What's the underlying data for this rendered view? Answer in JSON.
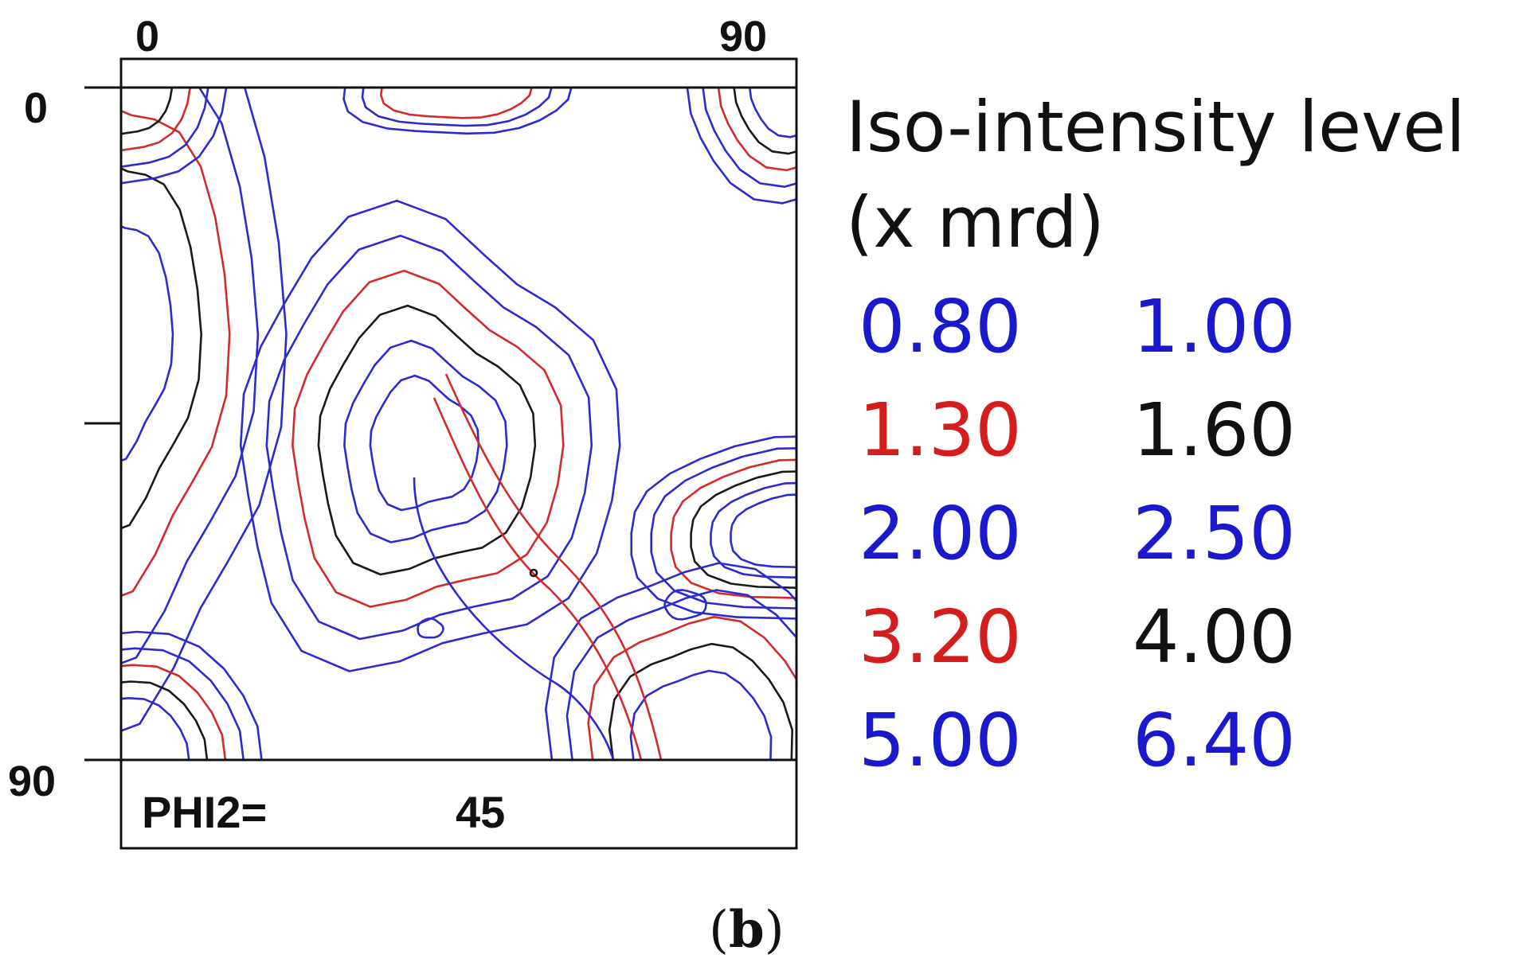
{
  "chart_data": {
    "type": "contour",
    "panel_label": {
      "open": "(",
      "letter": "b",
      "close": ")"
    },
    "x_axis": {
      "range": [
        0,
        90
      ],
      "tick_labels": [
        "0",
        "90"
      ]
    },
    "y_axis": {
      "range": [
        0,
        90
      ],
      "tick_labels": [
        "0",
        "90"
      ],
      "inverted": true
    },
    "section": {
      "label": "PHI2=",
      "value": "45"
    },
    "legend": {
      "title_line1": "Iso-intensity level",
      "title_line2": "(x mrd)",
      "levels": [
        {
          "value": "0.80",
          "color": "#1a1acc"
        },
        {
          "value": "1.00",
          "color": "#1a1acc"
        },
        {
          "value": "1.30",
          "color": "#d41e1e"
        },
        {
          "value": "1.60",
          "color": "#111111"
        },
        {
          "value": "2.00",
          "color": "#1a1acc"
        },
        {
          "value": "2.50",
          "color": "#1a1acc"
        },
        {
          "value": "3.20",
          "color": "#d41e1e"
        },
        {
          "value": "4.00",
          "color": "#111111"
        },
        {
          "value": "5.00",
          "color": "#1a1acc"
        },
        {
          "value": "6.40",
          "color": "#1a1acc"
        }
      ]
    },
    "contour_colors": {
      "blue": "#2b2bd0",
      "red": "#d42a2a",
      "black": "#1a1a1a"
    }
  }
}
